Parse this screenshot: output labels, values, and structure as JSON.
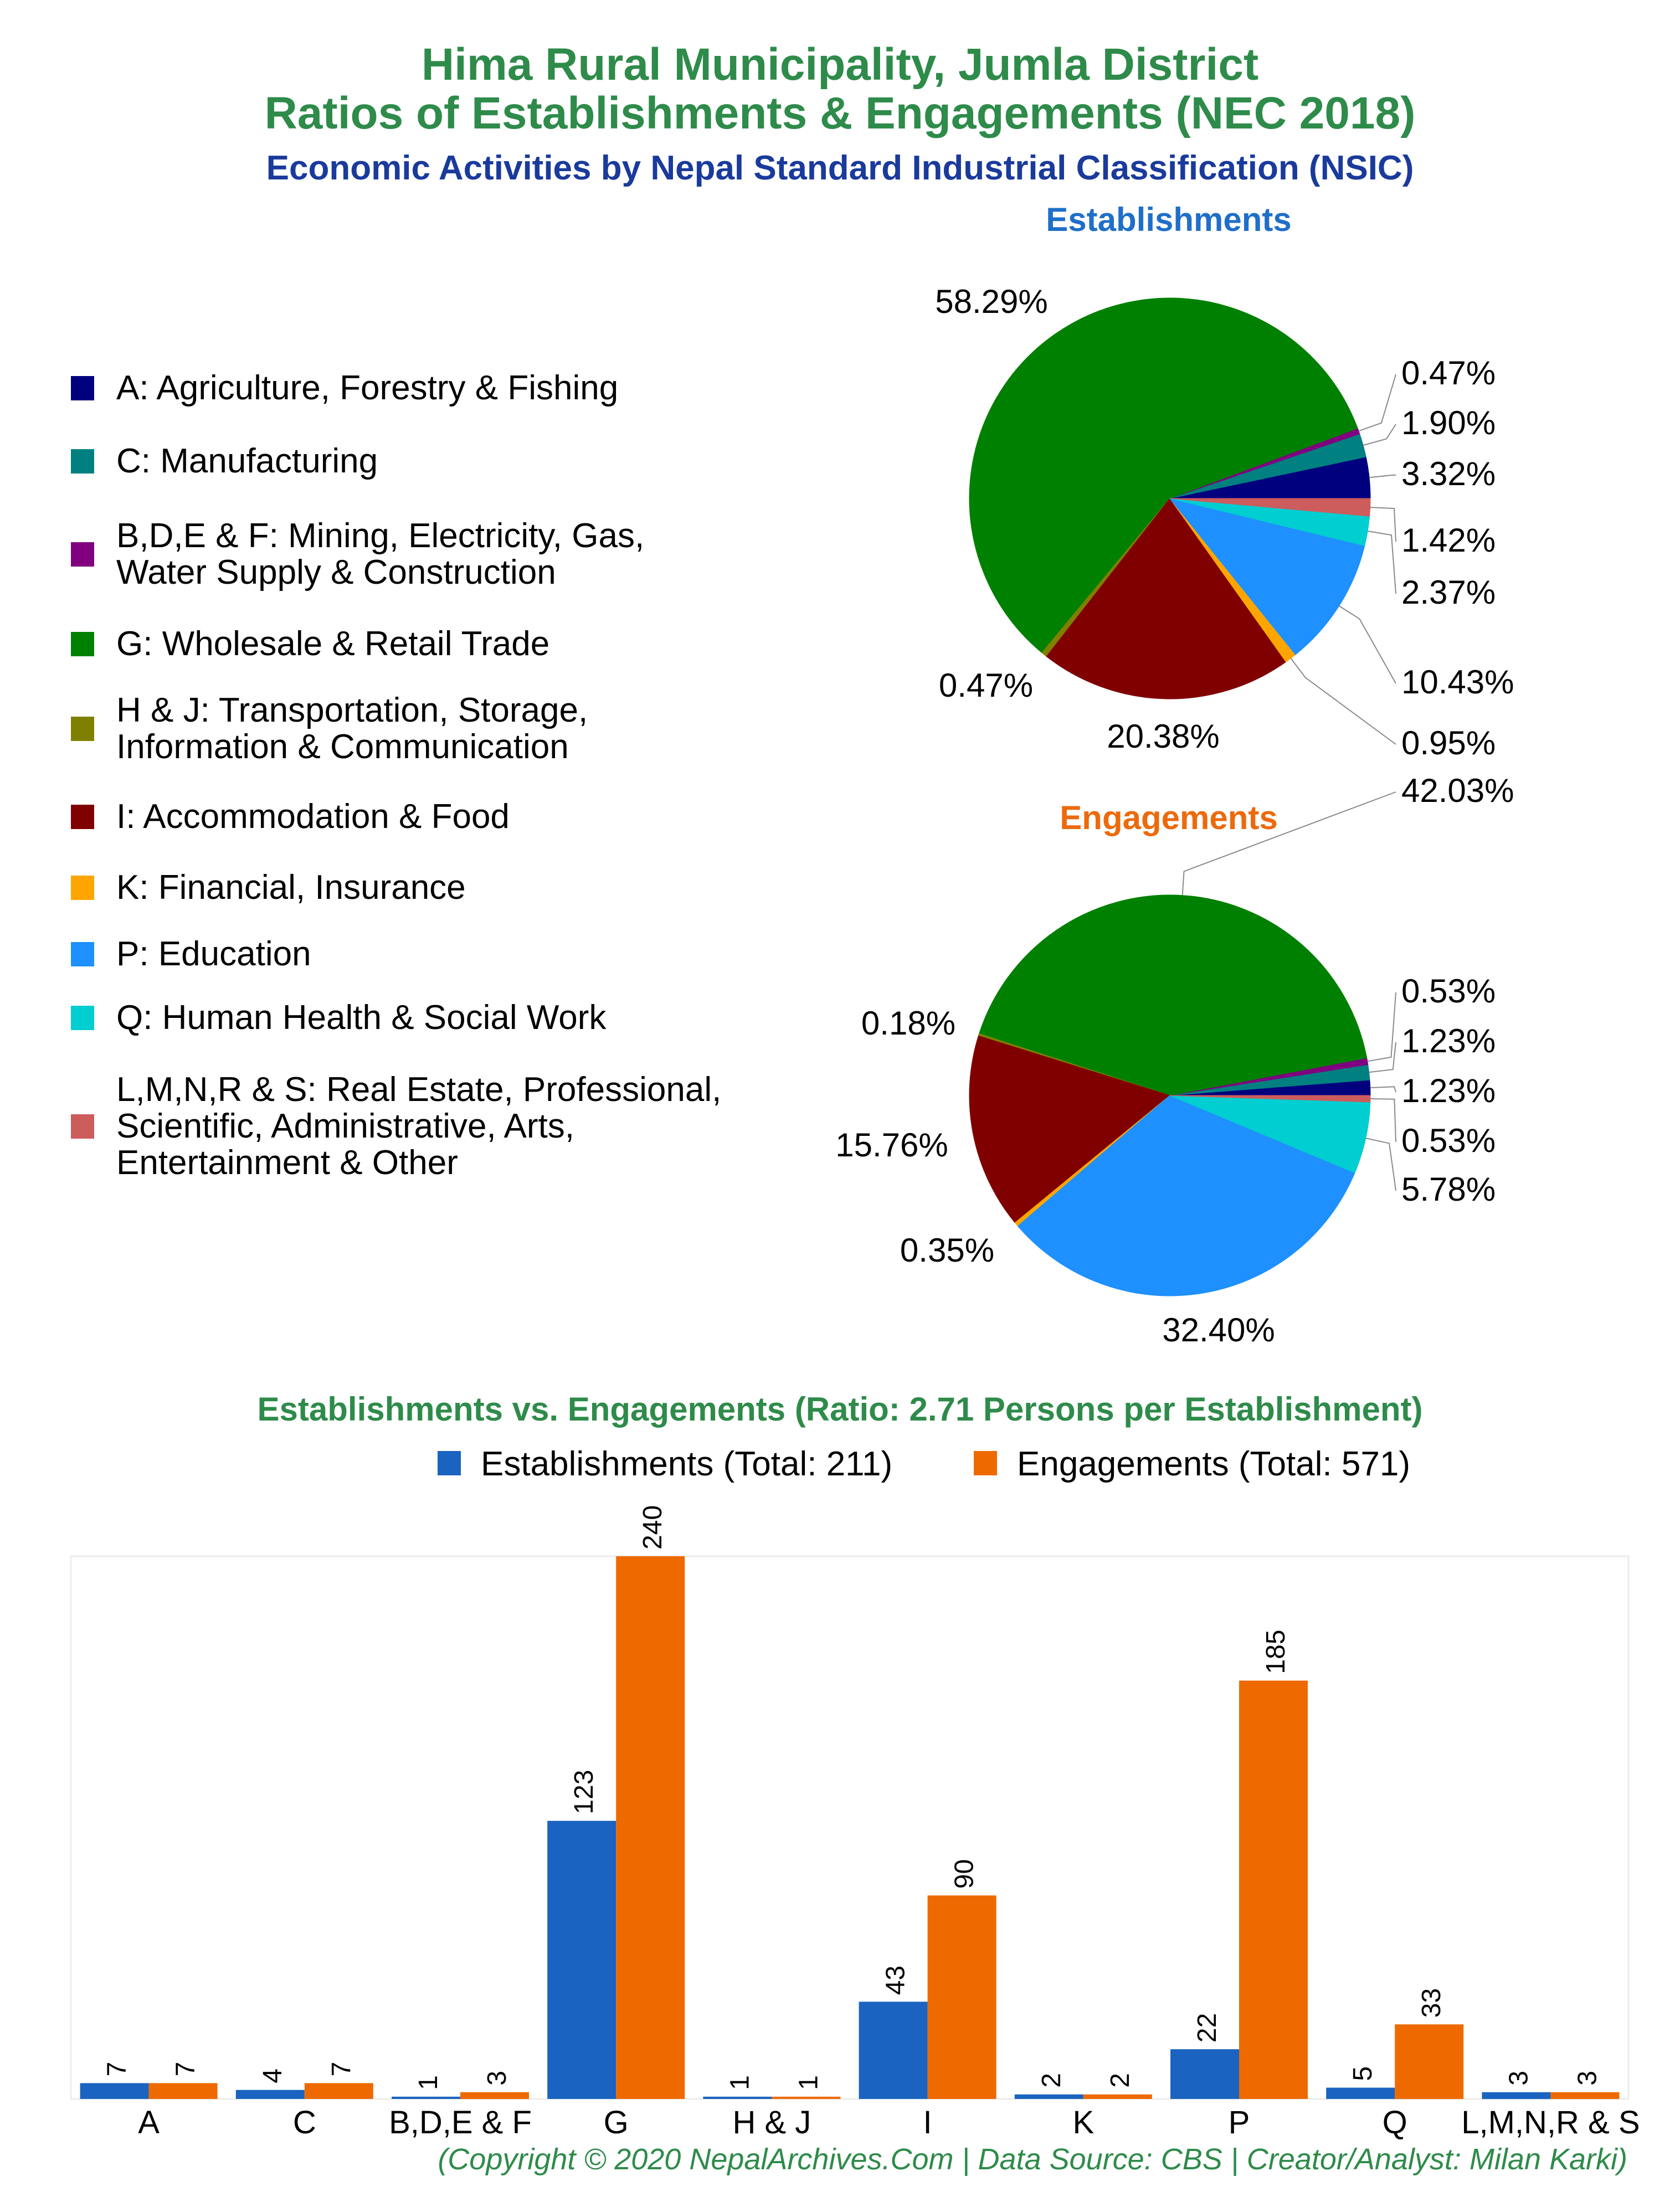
{
  "titles": {
    "line1": "Hima Rural Municipality, Jumla District",
    "line2": "Ratios of Establishments & Engagements (NEC 2018)",
    "subtitle": "Economic Activities by Nepal Standard Industrial Classification (NSIC)",
    "pie_establishments": "Establishments",
    "pie_engagements": "Engagements",
    "bar_title": "Establishments vs. Engagements (Ratio: 2.71 Persons per Establishment)",
    "footer": "(Copyright © 2020 NepalArchives.Com | Data Source: CBS | Creator/Analyst: Milan Karki)"
  },
  "colors": {
    "title_green": "#2e8b4a",
    "subtitle_blue": "#1a3a9c",
    "establishments_title": "#1f6fc9",
    "engagements_title": "#ec6a0c",
    "bar_establishments": "#1a63c0",
    "bar_engagements": "#ee6a00"
  },
  "legend": [
    {
      "label_lines": [
        "A: Agriculture, Forestry & Fishing"
      ],
      "color": "#00007f"
    },
    {
      "label_lines": [
        "C: Manufacturing"
      ],
      "color": "#008080"
    },
    {
      "label_lines": [
        "B,D,E & F: Mining, Electricity, Gas,",
        "Water Supply & Construction"
      ],
      "color": "#800080"
    },
    {
      "label_lines": [
        "G: Wholesale & Retail Trade"
      ],
      "color": "#008000"
    },
    {
      "label_lines": [
        "H & J: Transportation, Storage,",
        "Information & Communication"
      ],
      "color": "#808000"
    },
    {
      "label_lines": [
        "I: Accommodation & Food"
      ],
      "color": "#800000"
    },
    {
      "label_lines": [
        "K: Financial, Insurance"
      ],
      "color": "#ffa500"
    },
    {
      "label_lines": [
        "P: Education"
      ],
      "color": "#1e90ff"
    },
    {
      "label_lines": [
        "Q: Human Health & Social Work"
      ],
      "color": "#00ced1"
    },
    {
      "label_lines": [
        "L,M,N,R & S: Real Estate, Professional,",
        "Scientific, Administrative, Arts,",
        "Entertainment & Other"
      ],
      "color": "#cd5c5c"
    }
  ],
  "chart_data": [
    {
      "type": "pie",
      "title": "Establishments",
      "categories": [
        "A",
        "C",
        "B,D,E & F",
        "G",
        "H & J",
        "I",
        "K",
        "P",
        "Q",
        "L,M,N,R & S"
      ],
      "values": [
        3.32,
        1.9,
        0.47,
        58.29,
        0.47,
        20.38,
        0.95,
        10.43,
        2.37,
        1.42
      ],
      "labels": [
        "3.32%",
        "1.90%",
        "0.47%",
        "58.29%",
        "0.47%",
        "20.38%",
        "0.95%",
        "10.43%",
        "2.37%",
        "1.42%"
      ]
    },
    {
      "type": "pie",
      "title": "Engagements",
      "categories": [
        "A",
        "C",
        "B,D,E & F",
        "G",
        "H & J",
        "I",
        "K",
        "P",
        "Q",
        "L,M,N,R & S"
      ],
      "values": [
        1.23,
        1.23,
        0.53,
        42.03,
        0.18,
        15.76,
        0.35,
        32.4,
        5.78,
        0.53
      ],
      "labels": [
        "1.23%",
        "1.23%",
        "0.53%",
        "42.03%",
        "0.18%",
        "15.76%",
        "0.35%",
        "32.40%",
        "5.78%",
        "0.53%"
      ]
    },
    {
      "type": "bar",
      "title": "Establishments vs. Engagements (Ratio: 2.71 Persons per Establishment)",
      "categories": [
        "A",
        "C",
        "B,D,E & F",
        "G",
        "H & J",
        "I",
        "K",
        "P",
        "Q",
        "L,M,N,R & S"
      ],
      "series": [
        {
          "name": "Establishments (Total: 211)",
          "values": [
            7,
            4,
            1,
            123,
            1,
            43,
            2,
            22,
            5,
            3
          ]
        },
        {
          "name": "Engagements (Total: 571)",
          "values": [
            7,
            7,
            3,
            240,
            1,
            90,
            2,
            185,
            33,
            3
          ]
        }
      ],
      "ylim": [
        0,
        240
      ],
      "legend": "top"
    }
  ]
}
